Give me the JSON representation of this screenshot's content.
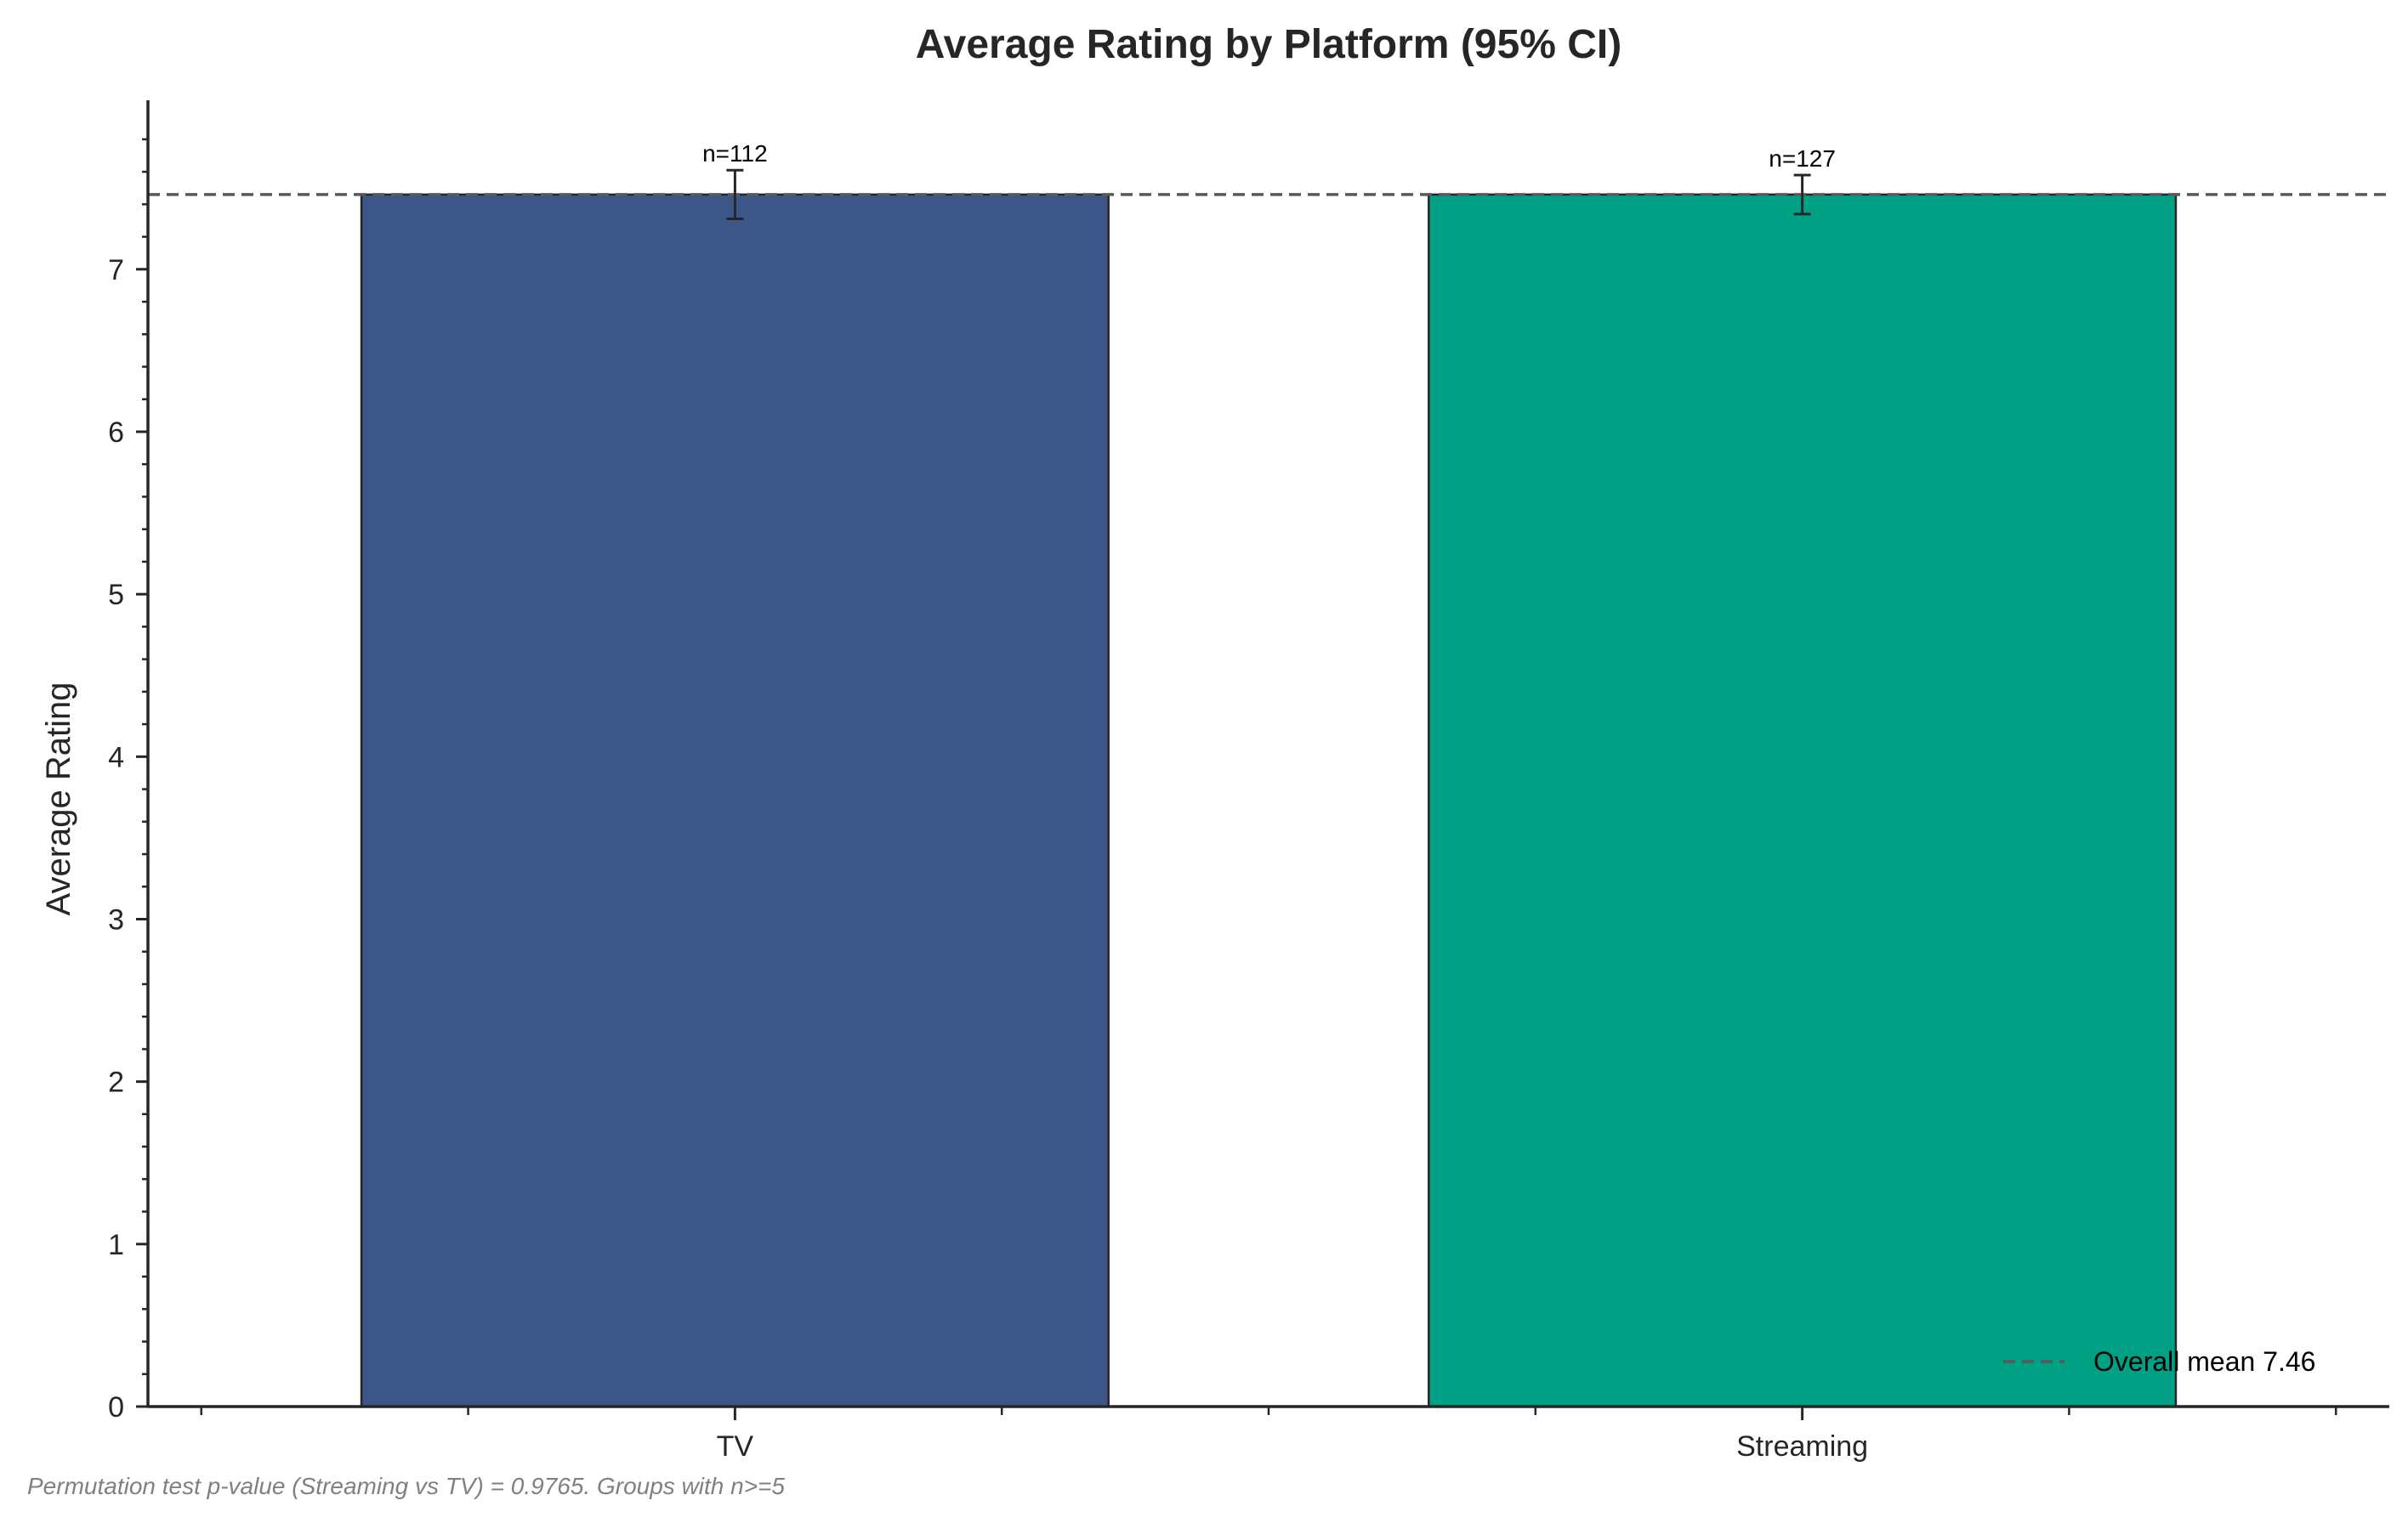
{
  "chart_data": {
    "type": "bar",
    "title": "Average Rating by Platform (95% CI)",
    "xlabel": "",
    "ylabel": "Average Rating",
    "categories": [
      "TV",
      "Streaming"
    ],
    "values": [
      7.46,
      7.46
    ],
    "ci_lower": [
      7.31,
      7.34
    ],
    "ci_upper": [
      7.61,
      7.58
    ],
    "n_labels": [
      "n=112",
      "n=127"
    ],
    "colors": [
      "#3d5688",
      "#00a085"
    ],
    "edge_color": "#262626",
    "ylim": [
      0,
      8.04
    ],
    "y_ticks": [
      0,
      1,
      2,
      3,
      4,
      5,
      6,
      7
    ],
    "y_minor_step": 0.2,
    "reference_line": {
      "value": 7.46,
      "label": "Overall mean 7.46",
      "color": "#595959",
      "style": "dashed"
    },
    "legend": {
      "placement": "lower-right",
      "entries": [
        "Overall mean 7.46"
      ]
    },
    "grid": false,
    "footnote": "Permutation test p-value (Streaming vs TV) = 0.9765. Groups with n>=5"
  }
}
